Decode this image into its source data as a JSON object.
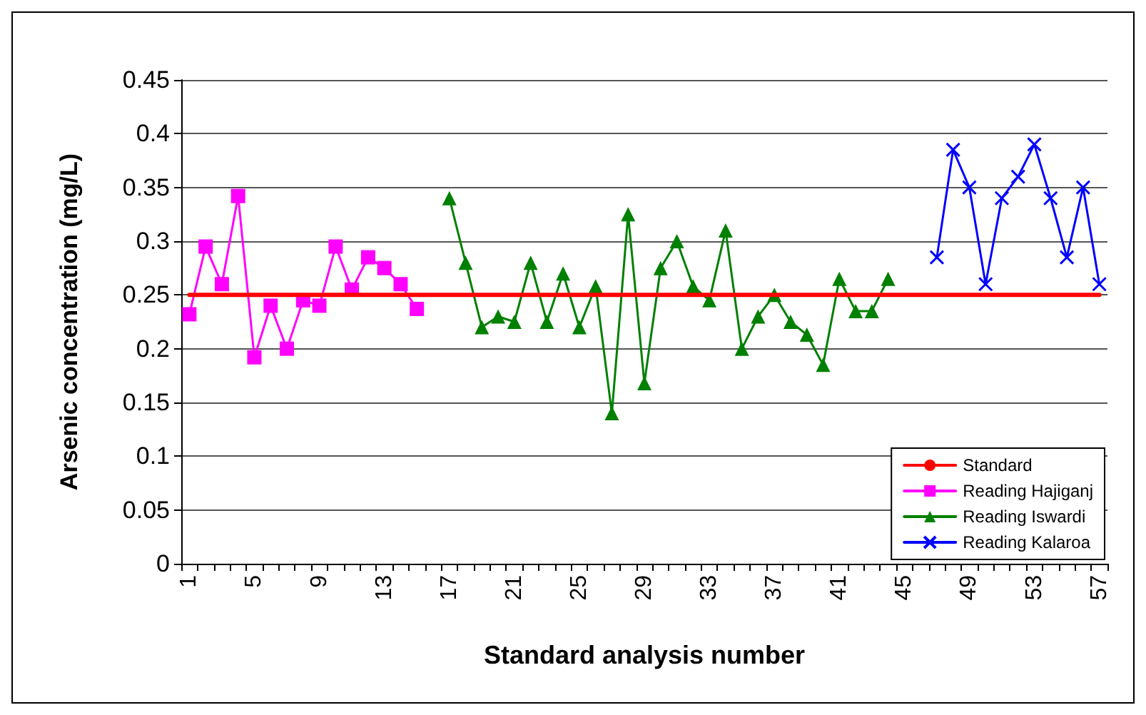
{
  "chart_data": {
    "type": "line",
    "xlabel": "Standard analysis number",
    "ylabel": "Arsenic concentration (mg/L)",
    "categories": [
      "1",
      null,
      null,
      null,
      "5",
      null,
      null,
      null,
      "9",
      null,
      null,
      null,
      "13",
      null,
      null,
      null,
      "17",
      null,
      null,
      null,
      "21",
      null,
      null,
      null,
      "25",
      null,
      null,
      null,
      "29",
      null,
      null,
      null,
      "33",
      null,
      null,
      null,
      "37",
      null,
      null,
      null,
      "41",
      null,
      null,
      null,
      "45",
      null,
      null,
      null,
      "49",
      null,
      null,
      null,
      "53",
      null,
      null,
      null,
      "57"
    ],
    "ylim": [
      0,
      0.45
    ],
    "yticks": [
      0,
      0.05,
      0.1,
      0.15,
      0.2,
      0.25,
      0.3,
      0.35,
      0.4,
      0.45
    ],
    "grid": "y",
    "legend": "bottom right",
    "series": [
      {
        "name": "Standard",
        "color": "#ff0000",
        "marker": "none",
        "values": [
          0.25,
          0.25,
          0.25,
          0.25,
          0.25,
          0.25,
          0.25,
          0.25,
          0.25,
          0.25,
          0.25,
          0.25,
          0.25,
          0.25,
          0.25,
          0.25,
          0.25,
          0.25,
          0.25,
          0.25,
          0.25,
          0.25,
          0.25,
          0.25,
          0.25,
          0.25,
          0.25,
          0.25,
          0.25,
          0.25,
          0.25,
          0.25,
          0.25,
          0.25,
          0.25,
          0.25,
          0.25,
          0.25,
          0.25,
          0.25,
          0.25,
          0.25,
          0.25,
          0.25,
          0.25,
          0.25,
          0.25,
          0.25,
          0.25,
          0.25,
          0.25,
          0.25,
          0.25,
          0.25,
          0.25,
          0.25,
          0.25
        ]
      },
      {
        "name": "Reading Hajiganj",
        "color": "#ff00ff",
        "marker": "square",
        "values": [
          0.232,
          0.295,
          0.26,
          0.342,
          0.192,
          0.24,
          0.2,
          0.245,
          0.24,
          0.295,
          0.255,
          0.285,
          0.275,
          0.26,
          0.237,
          null,
          null,
          null,
          null,
          null,
          null,
          null,
          null,
          null,
          null,
          null,
          null,
          null,
          null,
          null,
          null,
          null,
          null,
          null,
          null,
          null,
          null,
          null,
          null,
          null,
          null,
          null,
          null,
          null,
          null,
          null,
          null,
          null,
          null,
          null,
          null,
          null,
          null,
          null,
          null,
          null,
          null
        ]
      },
      {
        "name": "Reading Iswardi",
        "color": "#008000",
        "marker": "triangle",
        "values": [
          null,
          null,
          null,
          null,
          null,
          null,
          null,
          null,
          null,
          null,
          null,
          null,
          null,
          null,
          null,
          null,
          0.34,
          0.28,
          0.22,
          0.23,
          0.225,
          0.28,
          0.225,
          0.27,
          0.22,
          0.258,
          0.14,
          0.325,
          0.168,
          0.275,
          0.3,
          0.258,
          0.245,
          0.31,
          0.2,
          0.23,
          0.25,
          0.225,
          0.213,
          0.185,
          0.265,
          0.235,
          0.235,
          0.265,
          null,
          null,
          null,
          null,
          null,
          null,
          null,
          null,
          null,
          null,
          null,
          null,
          null
        ]
      },
      {
        "name": "Reading Kalaroa",
        "color": "#0000ff",
        "marker": "cross",
        "values": [
          null,
          null,
          null,
          null,
          null,
          null,
          null,
          null,
          null,
          null,
          null,
          null,
          null,
          null,
          null,
          null,
          null,
          null,
          null,
          null,
          null,
          null,
          null,
          null,
          null,
          null,
          null,
          null,
          null,
          null,
          null,
          null,
          null,
          null,
          null,
          null,
          null,
          null,
          null,
          null,
          null,
          null,
          null,
          null,
          null,
          null,
          0.285,
          0.385,
          0.35,
          0.26,
          0.34,
          0.36,
          0.39,
          0.34,
          0.285,
          0.35,
          0.26
        ]
      }
    ]
  }
}
